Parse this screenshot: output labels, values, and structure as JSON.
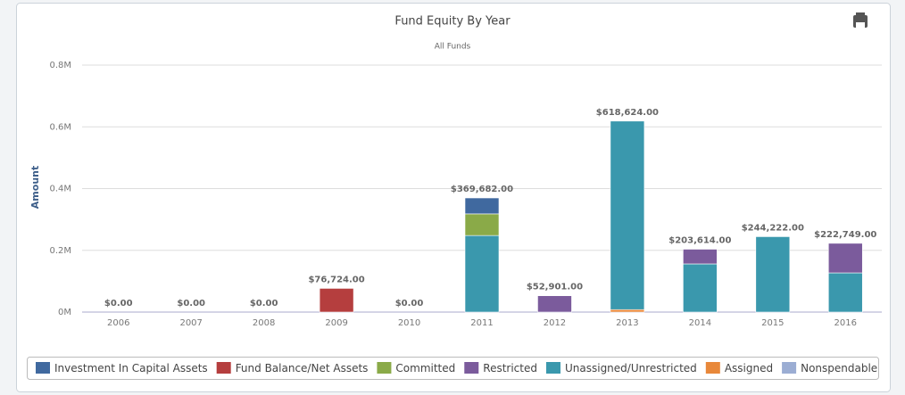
{
  "chart_data": {
    "type": "stacked_bar",
    "title": "Fund Equity By Year",
    "subtitle": "All Funds",
    "y_label": "Amount",
    "categories": [
      "2006",
      "2007",
      "2008",
      "2009",
      "2010",
      "2011",
      "2012",
      "2013",
      "2014",
      "2015",
      "2016"
    ],
    "series": [
      {
        "name": "Investment In Capital Assets",
        "color": "#40699f",
        "values": [
          0,
          0,
          0,
          0,
          0,
          51682,
          0,
          0,
          0,
          0,
          0
        ]
      },
      {
        "name": "Fund Balance/Net Assets",
        "color": "#b53e3e",
        "values": [
          0,
          0,
          0,
          76724,
          0,
          0,
          0,
          0,
          0,
          0,
          0
        ]
      },
      {
        "name": "Committed",
        "color": "#8aaa48",
        "values": [
          0,
          0,
          0,
          0,
          0,
          70000,
          0,
          0,
          0,
          0,
          0
        ]
      },
      {
        "name": "Restricted",
        "color": "#7b5b9c",
        "values": [
          0,
          0,
          0,
          0,
          0,
          0,
          52901,
          0,
          47614,
          0,
          95749
        ]
      },
      {
        "name": "Unassigned/Unrestricted",
        "color": "#3a98ad",
        "values": [
          0,
          0,
          0,
          0,
          0,
          248000,
          0,
          610624,
          156000,
          244222,
          127000
        ]
      },
      {
        "name": "Assigned",
        "color": "#e8883a",
        "values": [
          0,
          0,
          0,
          0,
          0,
          0,
          0,
          8000,
          0,
          0,
          0
        ]
      },
      {
        "name": "Nonspendable",
        "color": "#9badd3",
        "values": [
          0,
          0,
          0,
          0,
          0,
          0,
          0,
          0,
          0,
          0,
          0
        ]
      }
    ],
    "totals": [
      0,
      0,
      0,
      76724,
      0,
      369682,
      52901,
      618624,
      203614,
      244222,
      222749
    ],
    "total_labels": [
      "$0.00",
      "$0.00",
      "$0.00",
      "$76,724.00",
      "$0.00",
      "$369,682.00",
      "$52,901.00",
      "$618,624.00",
      "$203,614.00",
      "$244,222.00",
      "$222,749.00"
    ],
    "ylim": [
      0,
      800000
    ],
    "yticks": [
      {
        "value": 0,
        "label": "0M"
      },
      {
        "value": 200000,
        "label": "0.2M"
      },
      {
        "value": 400000,
        "label": "0.4M"
      },
      {
        "value": 600000,
        "label": "0.6M"
      },
      {
        "value": 800000,
        "label": "0.8M"
      }
    ],
    "grid": true
  }
}
